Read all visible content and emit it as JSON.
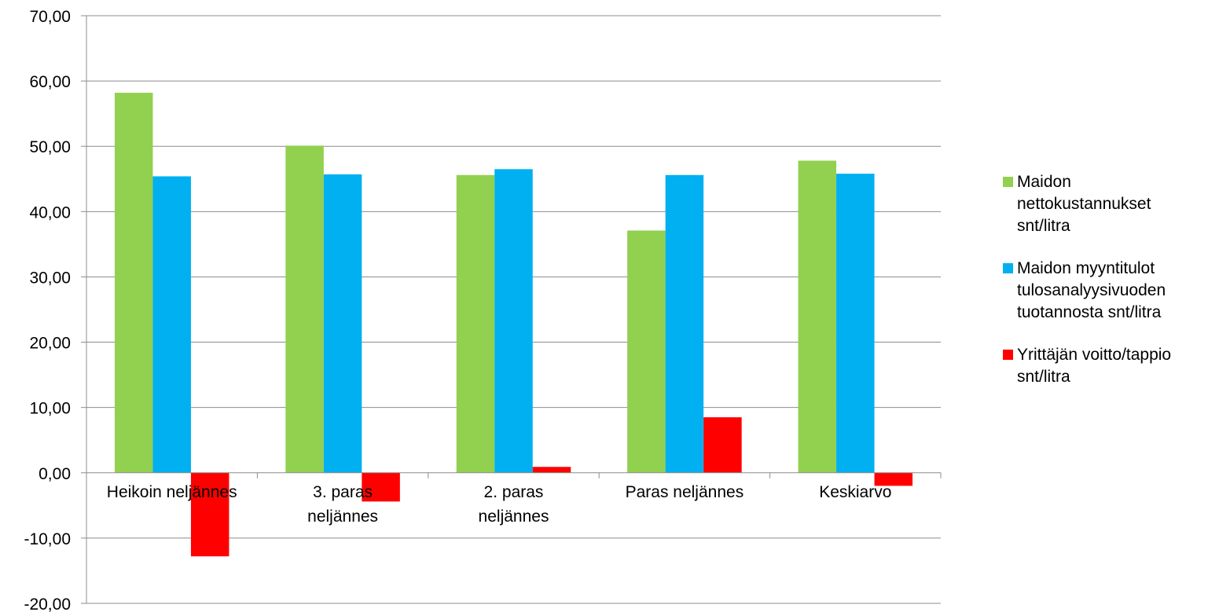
{
  "chart_data": {
    "type": "bar",
    "categories": [
      [
        "Heikoin neljännes"
      ],
      [
        "3. paras",
        "neljännes"
      ],
      [
        "2. paras",
        "neljännes"
      ],
      [
        "Paras neljännes"
      ],
      [
        "Keskiarvo"
      ]
    ],
    "series": [
      {
        "name": "Maidon nettokustannukset snt/litra",
        "color": "#92D050",
        "values": [
          58.2,
          50.1,
          45.6,
          37.1,
          47.8
        ]
      },
      {
        "name": "Maidon myyntitulot tulosanalyysivuoden tuotannosta snt/litra",
        "color": "#00B0F0",
        "values": [
          45.4,
          45.7,
          46.5,
          45.6,
          45.8
        ]
      },
      {
        "name": "Yrittäjän voitto/tappio snt/litra",
        "color": "#FF0000",
        "values": [
          -12.8,
          -4.4,
          0.9,
          8.5,
          -2.0
        ]
      }
    ],
    "ylim": [
      -20,
      70
    ],
    "yticks": [
      "70,00",
      "60,00",
      "50,00",
      "40,00",
      "30,00",
      "20,00",
      "10,00",
      "0,00",
      "-10,00",
      "-20,00"
    ],
    "ytick_values": [
      70,
      60,
      50,
      40,
      30,
      20,
      10,
      0,
      -10,
      -20
    ],
    "grid": true,
    "legend_position": "right"
  },
  "legend": {
    "items": [
      {
        "label": "Maidon nettokustannukset snt/litra",
        "lines": [
          "Maidon",
          "nettokustannukset",
          "snt/litra"
        ],
        "color": "#92D050"
      },
      {
        "label": "Maidon myyntitulot tulosanalyysivuoden tuotannosta snt/litra",
        "lines": [
          "Maidon myyntitulot",
          "tulosanalyysivuoden",
          "tuotannosta snt/litra"
        ],
        "color": "#00B0F0"
      },
      {
        "label": "Yrittäjän voitto/tappio snt/litra",
        "lines": [
          "Yrittäjän voitto/tappio",
          "snt/litra"
        ],
        "color": "#FF0000"
      }
    ]
  }
}
